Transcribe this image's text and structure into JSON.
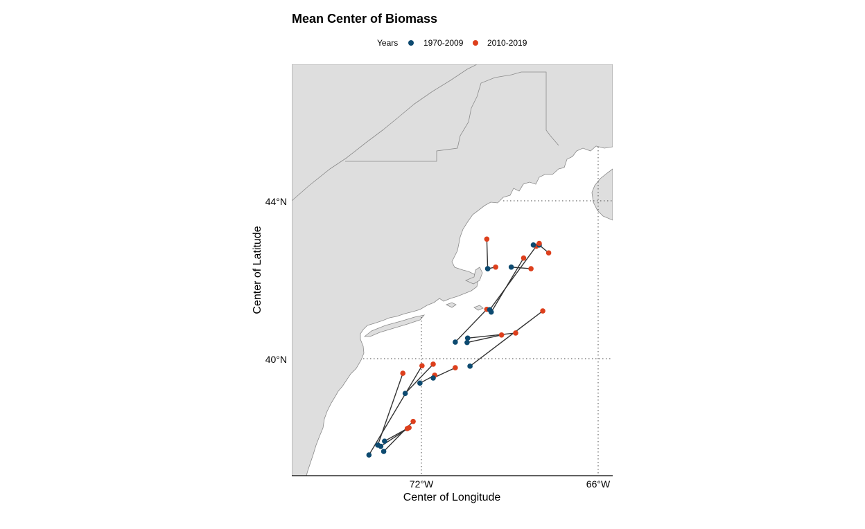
{
  "chart_data": {
    "type": "scatter",
    "title": "Mean Center of Biomass",
    "xlabel": "Center of Longitude",
    "ylabel": "Center of Latitude",
    "xlim": [
      -75.0,
      -65.9
    ],
    "ylim": [
      37.05,
      47.5
    ],
    "x_ticks": [
      {
        "value": -72,
        "label": "72°W"
      },
      {
        "value": -66,
        "label": "66°W"
      }
    ],
    "y_ticks": [
      {
        "value": 44,
        "label": "44°N"
      },
      {
        "value": 40,
        "label": "40°N"
      }
    ],
    "grid": "dotted at tick positions",
    "legend": {
      "title": "Years",
      "position": "top",
      "entries": [
        {
          "name": "1970-2009",
          "color": "#0d4a70"
        },
        {
          "name": "2010-2019",
          "color": "#dd3f1c"
        }
      ]
    },
    "series": [
      {
        "name": "1970-2009",
        "color": "#0d4a70"
      },
      {
        "name": "2010-2019",
        "color": "#dd3f1c"
      }
    ],
    "segments": [
      {
        "early": [
          -72.05,
          39.38
        ],
        "late": [
          -71.55,
          39.58
        ]
      },
      {
        "early": [
          -71.6,
          39.51
        ],
        "late": [
          -70.85,
          39.77
        ]
      },
      {
        "early": [
          -70.85,
          40.42
        ],
        "late": [
          -69.78,
          41.25
        ]
      },
      {
        "early": [
          -70.35,
          39.81
        ],
        "late": [
          -67.88,
          41.21
        ]
      },
      {
        "early": [
          -69.63,
          41.18
        ],
        "late": [
          -68.53,
          42.55
        ]
      },
      {
        "early": [
          -69.68,
          41.24
        ],
        "late": [
          -68.1,
          42.85
        ]
      },
      {
        "early": [
          -69.75,
          42.28
        ],
        "late": [
          -69.78,
          43.03
        ]
      },
      {
        "early": [
          -69.75,
          42.28
        ],
        "late": [
          -69.48,
          42.32
        ]
      },
      {
        "early": [
          -68.95,
          42.32
        ],
        "late": [
          -68.28,
          42.28
        ]
      },
      {
        "early": [
          -68.0,
          42.88
        ],
        "late": [
          -67.68,
          42.68
        ]
      },
      {
        "early": [
          -68.2,
          42.88
        ],
        "late": [
          -68.0,
          42.92
        ]
      },
      {
        "early": [
          -70.43,
          40.52
        ],
        "late": [
          -68.8,
          40.65
        ]
      },
      {
        "early": [
          -70.45,
          40.41
        ],
        "late": [
          -69.28,
          40.6
        ]
      },
      {
        "early": [
          -72.55,
          39.12
        ],
        "late": [
          -71.6,
          39.86
        ]
      },
      {
        "early": [
          -73.48,
          37.81
        ],
        "late": [
          -72.63,
          39.63
        ]
      },
      {
        "early": [
          -73.78,
          37.56
        ],
        "late": [
          -71.98,
          39.82
        ]
      },
      {
        "early": [
          -73.28,
          37.65
        ],
        "late": [
          -72.28,
          38.41
        ]
      },
      {
        "early": [
          -73.38,
          37.78
        ],
        "late": [
          -72.42,
          38.25
        ]
      },
      {
        "early": [
          -73.25,
          37.91
        ],
        "late": [
          -72.48,
          38.23
        ]
      }
    ]
  }
}
